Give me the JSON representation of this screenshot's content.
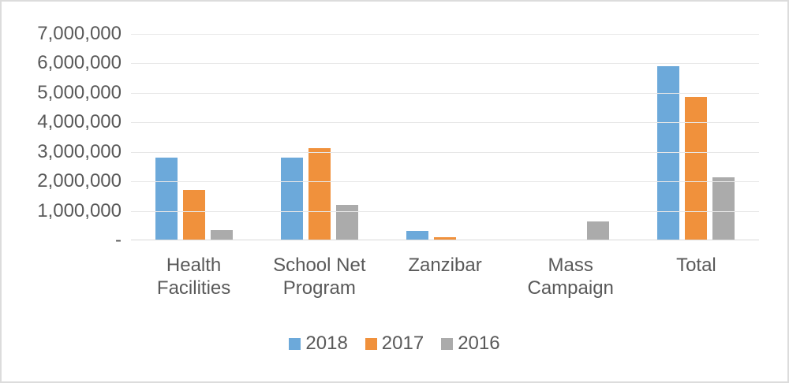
{
  "chart_data": {
    "type": "bar",
    "title": "",
    "categories": [
      "Health Facilities",
      "School Net Program",
      "Zanzibar",
      "Mass Campaign",
      "Total"
    ],
    "series": [
      {
        "name": "2018",
        "color": "#6CA9DA",
        "values": [
          2800000,
          2800000,
          300000,
          0,
          5900000
        ]
      },
      {
        "name": "2017",
        "color": "#F0913C",
        "values": [
          1690000,
          3100000,
          80000,
          0,
          4860000
        ]
      },
      {
        "name": "2016",
        "color": "#ABABAB",
        "values": [
          320000,
          1190000,
          0,
          620000,
          2130000
        ]
      }
    ],
    "xlabel": "",
    "ylabel": "",
    "ylim": [
      0,
      7000000
    ],
    "y_tick_step": 1000000,
    "y_tick_labels": [
      "7,000,000",
      "6,000,000",
      "5,000,000",
      "4,000,000",
      "3,000,000",
      "2,000,000",
      "1,000,000",
      "-"
    ],
    "grid": true,
    "legend_position": "bottom"
  },
  "style": {
    "text_color": "#595959",
    "gridline_color": "#E7E7E7",
    "axis_line_color": "#D9D9D9",
    "background": "#FFFFFF",
    "border_color": "#DCDCDC"
  }
}
